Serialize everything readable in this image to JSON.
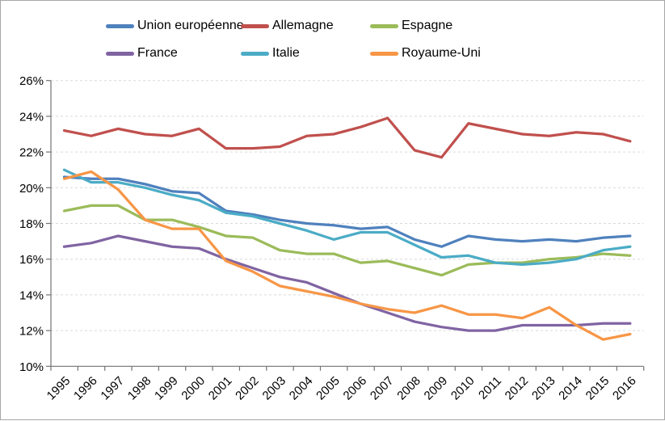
{
  "chart_data": {
    "type": "line",
    "title": "",
    "x": [
      "1995",
      "1996",
      "1997",
      "1998",
      "1999",
      "2000",
      "2001",
      "2002",
      "2003",
      "2004",
      "2005",
      "2006",
      "2007",
      "2008",
      "2009",
      "2010",
      "2011",
      "2012",
      "2013",
      "2014",
      "2015",
      "2016"
    ],
    "series": [
      {
        "name": "Union européenne",
        "color": "#4F81BD",
        "values": [
          20.6,
          20.5,
          20.5,
          20.2,
          19.8,
          19.7,
          18.7,
          18.5,
          18.2,
          18.0,
          17.9,
          17.7,
          17.8,
          17.1,
          16.7,
          17.3,
          17.1,
          17.0,
          17.1,
          17.0,
          17.2,
          17.3
        ]
      },
      {
        "name": "Allemagne",
        "color": "#C0504D",
        "values": [
          23.2,
          22.9,
          23.3,
          23.0,
          22.9,
          23.3,
          22.2,
          22.2,
          22.3,
          22.9,
          23.0,
          23.4,
          23.9,
          22.1,
          21.7,
          23.6,
          23.3,
          23.0,
          22.9,
          23.1,
          23.0,
          22.6
        ]
      },
      {
        "name": "Espagne",
        "color": "#9BBB59",
        "values": [
          18.7,
          19.0,
          19.0,
          18.2,
          18.2,
          17.8,
          17.3,
          17.2,
          16.5,
          16.3,
          16.3,
          15.8,
          15.9,
          15.5,
          15.1,
          15.7,
          15.8,
          15.8,
          16.0,
          16.1,
          16.3,
          16.2
        ]
      },
      {
        "name": "France",
        "color": "#8064A2",
        "values": [
          16.7,
          16.9,
          17.3,
          17.0,
          16.7,
          16.6,
          16.0,
          15.5,
          15.0,
          14.7,
          14.1,
          13.5,
          13.0,
          12.5,
          12.2,
          12.0,
          12.0,
          12.3,
          12.3,
          12.3,
          12.4,
          12.4
        ]
      },
      {
        "name": "Italie",
        "color": "#4BACC6",
        "values": [
          21.0,
          20.3,
          20.3,
          20.0,
          19.6,
          19.3,
          18.6,
          18.4,
          18.0,
          17.6,
          17.1,
          17.5,
          17.5,
          16.8,
          16.1,
          16.2,
          15.8,
          15.7,
          15.8,
          16.0,
          16.5,
          16.7
        ]
      },
      {
        "name": "Royaume-Uni",
        "color": "#F79646",
        "values": [
          20.5,
          20.9,
          19.9,
          18.2,
          17.7,
          17.7,
          15.9,
          15.3,
          14.5,
          14.2,
          13.9,
          13.5,
          13.2,
          13.0,
          13.4,
          12.9,
          12.9,
          12.7,
          13.3,
          12.3,
          11.5,
          11.8
        ]
      }
    ],
    "ylim": [
      10,
      26
    ],
    "ytick_step": 2,
    "y_tick_labels": [
      "10%",
      "12%",
      "14%",
      "16%",
      "18%",
      "20%",
      "22%",
      "24%",
      "26%"
    ],
    "grid": "horizontal-dashed",
    "legend_position": "top",
    "legend_rows": [
      [
        "Union européenne",
        "Allemagne",
        "Espagne"
      ],
      [
        "France",
        "Italie",
        "Royaume-Uni"
      ]
    ]
  },
  "colors": {
    "background": "#FFFFFF",
    "frame_border": "#A6A6A6",
    "gridline": "#D9D9D9",
    "axis": "#737373",
    "text": "#000000"
  }
}
